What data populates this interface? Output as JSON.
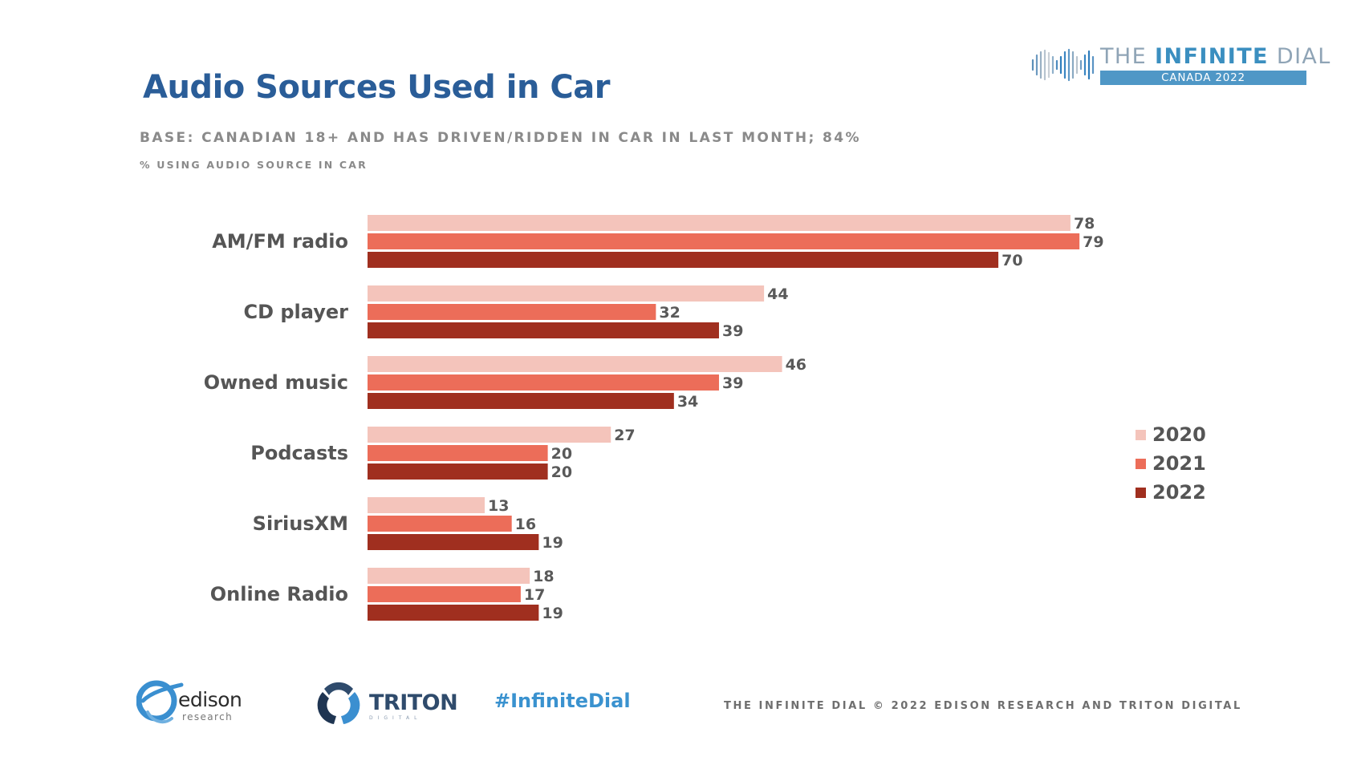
{
  "slide": {
    "title": "Audio Sources Used in Car",
    "base": "BASE: CANADIAN 18+ AND HAS DRIVEN/RIDDEN IN CAR IN LAST MONTH; 84%",
    "subtitle": "% USING AUDIO SOURCE IN CAR"
  },
  "brand": {
    "prefix": "THE ",
    "highlight": "INFINITE",
    "suffix": " DIAL",
    "edition": "CANADA  2022"
  },
  "chart_data": {
    "type": "bar",
    "orientation": "horizontal",
    "categories": [
      "AM/FM radio",
      "CD player",
      "Owned music",
      "Podcasts",
      "SiriusXM",
      "Online Radio"
    ],
    "series": [
      {
        "name": "2020",
        "color": "#f4c4bb",
        "values": [
          78,
          44,
          46,
          27,
          13,
          18
        ]
      },
      {
        "name": "2021",
        "color": "#ec6d59",
        "values": [
          79,
          32,
          39,
          20,
          16,
          17
        ]
      },
      {
        "name": "2022",
        "color": "#a02f1f",
        "values": [
          70,
          39,
          34,
          20,
          19,
          19
        ]
      }
    ],
    "xlim": [
      0,
      100
    ],
    "grid": false,
    "legend_position": "right",
    "title": "Audio Sources Used in Car",
    "xlabel": "",
    "ylabel": ""
  },
  "footer": {
    "edison_name": "edison",
    "edison_sub": "research",
    "triton_name": "TRITON",
    "triton_sub": "DIGITAL",
    "hashtag": "#InfiniteDial",
    "copyright": "THE INFINITE DIAL    © 2022 EDISON RESEARCH AND TRITON DIGITAL"
  }
}
